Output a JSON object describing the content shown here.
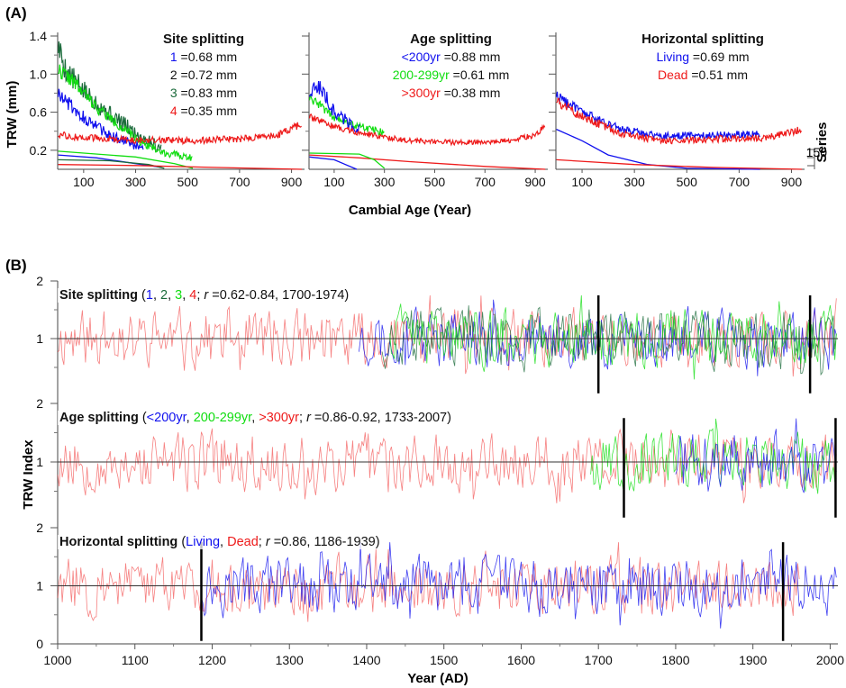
{
  "panel_labels": {
    "a": "(A)",
    "b": "(B)"
  },
  "colors": {
    "blue": "#1010ee",
    "green": "#10dd10",
    "darkgreen": "#1a6a3a",
    "red": "#ee1a1a",
    "black": "#111111"
  },
  "chart_data": [
    {
      "type": "line",
      "panel": "A",
      "ylabel": "TRW (mm)",
      "xlabel": "Cambial Age (Year)",
      "series_axis_label": "Series",
      "series_axis_tick": "150",
      "ylim": [
        0,
        1.4
      ],
      "xlim": [
        0,
        950
      ],
      "yticks": [
        "1.4",
        "1.0",
        "0.6",
        "0.2"
      ],
      "xticks": [
        "100",
        "300",
        "500",
        "700",
        "900"
      ],
      "subplots": [
        {
          "title": "Site splitting",
          "legend": [
            {
              "key": "1",
              "rest": " =0.68 mm",
              "color": "blue"
            },
            {
              "key": "2",
              "rest": " =0.72 mm",
              "color": "black"
            },
            {
              "key": "3",
              "rest": " =0.83 mm",
              "color": "darkgreen"
            },
            {
              "key": "4",
              "rest": " =0.35 mm",
              "color": "red"
            }
          ],
          "series": [
            {
              "color": "darkgreen",
              "points": [
                [
                  2,
                  1.3
                ],
                [
                  30,
                  1.05
                ],
                [
                  100,
                  0.82
                ],
                [
                  200,
                  0.58
                ],
                [
                  300,
                  0.38
                ],
                [
                  400,
                  0.22
                ]
              ],
              "noise": 0.08
            },
            {
              "color": "green",
              "points": [
                [
                  2,
                  1.05
                ],
                [
                  50,
                  0.95
                ],
                [
                  150,
                  0.65
                ],
                [
                  300,
                  0.32
                ],
                [
                  400,
                  0.18
                ],
                [
                  520,
                  0.12
                ]
              ],
              "noise": 0.05
            },
            {
              "color": "blue",
              "points": [
                [
                  2,
                  0.8
                ],
                [
                  100,
                  0.55
                ],
                [
                  200,
                  0.35
                ],
                [
                  330,
                  0.22
                ]
              ],
              "noise": 0.06
            },
            {
              "color": "red",
              "points": [
                [
                  2,
                  0.36
                ],
                [
                  100,
                  0.33
                ],
                [
                  300,
                  0.31
                ],
                [
                  500,
                  0.3
                ],
                [
                  700,
                  0.32
                ],
                [
                  850,
                  0.36
                ],
                [
                  940,
                  0.48
                ]
              ],
              "noise": 0.04
            }
          ],
          "count_curves": [
            {
              "color": "green",
              "points": [
                [
                  2,
                  0.19
                ],
                [
                  100,
                  0.17
                ],
                [
                  300,
                  0.13
                ],
                [
                  450,
                  0.06
                ],
                [
                  520,
                  0.01
                ]
              ]
            },
            {
              "color": "blue",
              "points": [
                [
                  2,
                  0.15
                ],
                [
                  150,
                  0.12
                ],
                [
                  300,
                  0.06
                ],
                [
                  400,
                  0.02
                ]
              ]
            },
            {
              "color": "darkgreen",
              "points": [
                [
                  2,
                  0.1
                ],
                [
                  200,
                  0.09
                ],
                [
                  350,
                  0.05
                ],
                [
                  410,
                  0.01
                ]
              ]
            },
            {
              "color": "red",
              "points": [
                [
                  2,
                  0.05
                ],
                [
                  300,
                  0.04
                ],
                [
                  600,
                  0.02
                ],
                [
                  940,
                  0.0
                ]
              ]
            }
          ]
        },
        {
          "title": "Age splitting",
          "legend": [
            {
              "key": "<200yr",
              "rest": " =0.88 mm",
              "color": "blue"
            },
            {
              "key": "200-299yr",
              "rest": " =0.61 mm",
              "color": "green"
            },
            {
              "key": ">300yr",
              "rest": " =0.38 mm",
              "color": "red"
            }
          ],
          "series": [
            {
              "color": "green",
              "points": [
                [
                  2,
                  0.75
                ],
                [
                  100,
                  0.55
                ],
                [
                  200,
                  0.45
                ],
                [
                  300,
                  0.38
                ]
              ],
              "noise": 0.04
            },
            {
              "color": "blue",
              "points": [
                [
                  2,
                  0.8
                ],
                [
                  40,
                  0.88
                ],
                [
                  100,
                  0.6
                ],
                [
                  200,
                  0.42
                ]
              ],
              "noise": 0.06
            },
            {
              "color": "red",
              "points": [
                [
                  2,
                  0.55
                ],
                [
                  100,
                  0.45
                ],
                [
                  200,
                  0.38
                ],
                [
                  400,
                  0.3
                ],
                [
                  600,
                  0.28
                ],
                [
                  800,
                  0.3
                ],
                [
                  900,
                  0.36
                ],
                [
                  940,
                  0.46
                ]
              ],
              "noise": 0.03
            }
          ],
          "count_curves": [
            {
              "color": "red",
              "points": [
                [
                  2,
                  0.15
                ],
                [
                  200,
                  0.12
                ],
                [
                  400,
                  0.08
                ],
                [
                  700,
                  0.03
                ],
                [
                  940,
                  0.0
                ]
              ]
            },
            {
              "color": "green",
              "points": [
                [
                  2,
                  0.17
                ],
                [
                  200,
                  0.16
                ],
                [
                  260,
                  0.1
                ],
                [
                  300,
                  0.01
                ]
              ]
            },
            {
              "color": "blue",
              "points": [
                [
                  2,
                  0.13
                ],
                [
                  100,
                  0.1
                ],
                [
                  190,
                  0.0
                ]
              ]
            }
          ]
        },
        {
          "title": "Horizontal splitting",
          "legend": [
            {
              "key": "Living",
              "rest": " =0.69 mm",
              "color": "blue"
            },
            {
              "key": "Dead",
              "rest": " =0.51 mm",
              "color": "red"
            }
          ],
          "series": [
            {
              "color": "blue",
              "points": [
                [
                  2,
                  0.78
                ],
                [
                  100,
                  0.6
                ],
                [
                  250,
                  0.42
                ],
                [
                  400,
                  0.35
                ],
                [
                  600,
                  0.36
                ],
                [
                  780,
                  0.37
                ]
              ],
              "noise": 0.04
            },
            {
              "color": "red",
              "points": [
                [
                  2,
                  0.72
                ],
                [
                  100,
                  0.55
                ],
                [
                  250,
                  0.38
                ],
                [
                  400,
                  0.3
                ],
                [
                  600,
                  0.32
                ],
                [
                  800,
                  0.33
                ],
                [
                  940,
                  0.42
                ]
              ],
              "noise": 0.04
            }
          ],
          "count_curves": [
            {
              "color": "blue",
              "points": [
                [
                  2,
                  0.42
                ],
                [
                  100,
                  0.3
                ],
                [
                  200,
                  0.15
                ],
                [
                  350,
                  0.05
                ],
                [
                  500,
                  0.01
                ],
                [
                  780,
                  0.0
                ]
              ]
            },
            {
              "color": "red",
              "points": [
                [
                  2,
                  0.1
                ],
                [
                  300,
                  0.05
                ],
                [
                  600,
                  0.02
                ],
                [
                  940,
                  0.0
                ]
              ]
            }
          ]
        }
      ]
    },
    {
      "type": "line",
      "panel": "B",
      "ylabel": "TRW Index",
      "xlabel": "Year (AD)",
      "xlim": [
        1000,
        2010
      ],
      "xticks": [
        "1000",
        "1100",
        "1200",
        "1300",
        "1400",
        "1500",
        "1600",
        "1700",
        "1800",
        "1900",
        "2000"
      ],
      "ylim": [
        0,
        2
      ],
      "yticks": [
        "2",
        "1",
        "0"
      ],
      "rows": [
        {
          "annotation": [
            {
              "t": "Site splitting",
              "style": "bold",
              "color": "black"
            },
            {
              "t": " (",
              "color": "black"
            },
            {
              "t": "1",
              "color": "blue"
            },
            {
              "t": ", ",
              "color": "black"
            },
            {
              "t": "2",
              "color": "darkgreen"
            },
            {
              "t": ", ",
              "color": "black"
            },
            {
              "t": "3",
              "color": "green"
            },
            {
              "t": ", ",
              "color": "black"
            },
            {
              "t": "4",
              "color": "red"
            },
            {
              "t": "; ",
              "color": "black"
            },
            {
              "t": "r",
              "style": "italic",
              "color": "black"
            },
            {
              "t": " =0.62-0.84, 1700-1974)",
              "color": "black"
            }
          ],
          "markers": [
            1700,
            1974
          ],
          "series": [
            {
              "color": "red",
              "from": 1000,
              "to": 2008,
              "seed": 11
            },
            {
              "color": "blue",
              "from": 1390,
              "to": 2008,
              "seed": 23
            },
            {
              "color": "darkgreen",
              "from": 1420,
              "to": 2008,
              "seed": 37
            },
            {
              "color": "green",
              "from": 1430,
              "to": 2008,
              "seed": 41
            }
          ]
        },
        {
          "annotation": [
            {
              "t": "Age splitting",
              "style": "bold",
              "color": "black"
            },
            {
              "t": " (",
              "color": "black"
            },
            {
              "t": "<200yr",
              "color": "blue"
            },
            {
              "t": ", ",
              "color": "black"
            },
            {
              "t": "200-299yr",
              "color": "green"
            },
            {
              "t": ", ",
              "color": "black"
            },
            {
              "t": ">300yr",
              "color": "red"
            },
            {
              "t": "; ",
              "color": "black"
            },
            {
              "t": "r",
              "style": "italic",
              "color": "black"
            },
            {
              "t": " =0.86-0.92, 1733-2007)",
              "color": "black"
            }
          ],
          "markers": [
            1733,
            2007
          ],
          "series": [
            {
              "color": "red",
              "from": 1000,
              "to": 2008,
              "seed": 53
            },
            {
              "color": "green",
              "from": 1690,
              "to": 2008,
              "seed": 67
            },
            {
              "color": "blue",
              "from": 1800,
              "to": 2008,
              "seed": 71
            }
          ]
        },
        {
          "annotation": [
            {
              "t": "Horizontal splitting",
              "style": "bold",
              "color": "black"
            },
            {
              "t": " (",
              "color": "black"
            },
            {
              "t": "Living",
              "color": "blue"
            },
            {
              "t": ", ",
              "color": "black"
            },
            {
              "t": "Dead",
              "color": "red"
            },
            {
              "t": "; ",
              "color": "black"
            },
            {
              "t": "r",
              "style": "italic",
              "color": "black"
            },
            {
              "t": " =0.86, 1186-1939)",
              "color": "black"
            }
          ],
          "markers": [
            1186,
            1939
          ],
          "series": [
            {
              "color": "red",
              "from": 1000,
              "to": 1960,
              "seed": 83
            },
            {
              "color": "blue",
              "from": 1186,
              "to": 2008,
              "seed": 97
            }
          ]
        }
      ]
    }
  ]
}
